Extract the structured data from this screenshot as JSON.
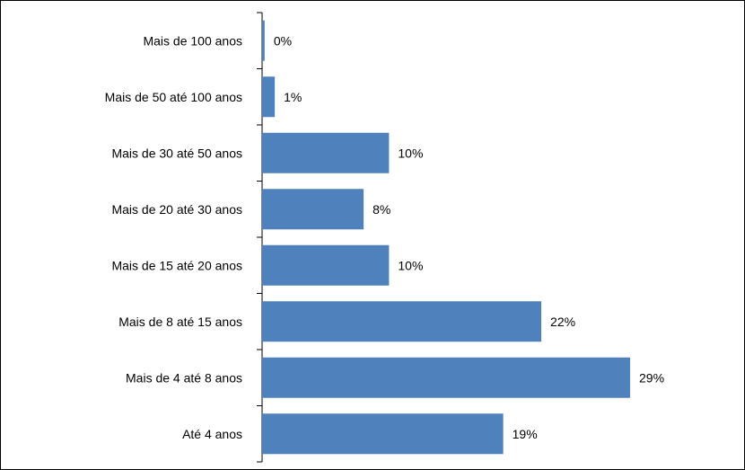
{
  "chart_data": {
    "type": "bar",
    "orientation": "horizontal",
    "categories": [
      "Mais de 100 anos",
      "Mais de 50 até 100 anos",
      "Mais de 30 até 50 anos",
      "Mais de 20 até 30 anos",
      "Mais de 15 até 20 anos",
      "Mais de 8 até 15 anos",
      "Mais de 4 até 8 anos",
      "Até 4 anos"
    ],
    "values": [
      0.2,
      1,
      10,
      8,
      10,
      22,
      29,
      19
    ],
    "value_labels": [
      "0%",
      "1%",
      "10%",
      "8%",
      "10%",
      "22%",
      "29%",
      "19%"
    ],
    "title": "",
    "xlabel": "",
    "ylabel": "",
    "xlim": [
      0,
      36
    ],
    "grid": false,
    "legend": "none",
    "bar_color": "#4F81BD"
  }
}
